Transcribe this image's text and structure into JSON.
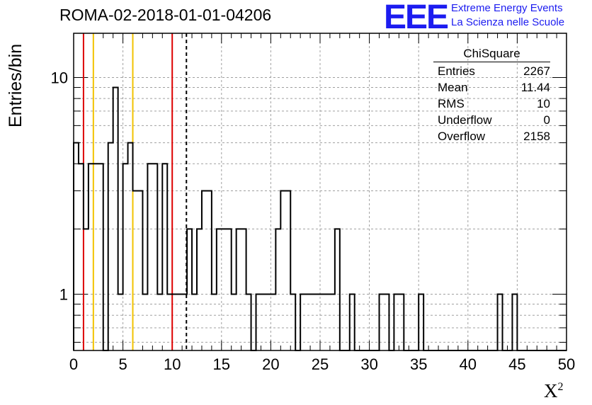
{
  "header": {
    "title": "ROMA-02-2018-01-01-04206",
    "logo_text": "EEE",
    "logo_line1": "Extreme Energy Events",
    "logo_line2": "La Scienza nelle Scuole"
  },
  "stats": {
    "title": "ChiSquare",
    "rows": [
      {
        "label": "Entries",
        "value": "2267"
      },
      {
        "label": "Mean",
        "value": "11.44"
      },
      {
        "label": "RMS",
        "value": "10"
      },
      {
        "label": "Underflow",
        "value": "0"
      },
      {
        "label": "Overflow",
        "value": "2158"
      }
    ]
  },
  "colors": {
    "histogram": "#000000",
    "red_lines": "#dd0000",
    "yellow_lines": "#f2c200",
    "grid": "#a0a0a0",
    "logo": "#1c1cf0"
  },
  "chart_data": {
    "type": "bar",
    "subtype": "step-histogram",
    "title": "ROMA-02-2018-01-01-04206",
    "xlabel": "X",
    "xlabel_superscript": "2",
    "ylabel": "Entries/bin",
    "xlim": [
      0,
      50
    ],
    "ylim": [
      0.55,
      16
    ],
    "yscale": "log",
    "grid": true,
    "bin_width": 0.5,
    "x_ticks": [
      0,
      5,
      10,
      15,
      20,
      25,
      30,
      35,
      40,
      45,
      50
    ],
    "y_ticks": [
      1,
      10
    ],
    "bins": [
      [
        0.0,
        5
      ],
      [
        0.5,
        4
      ],
      [
        1.0,
        2
      ],
      [
        1.5,
        4
      ],
      [
        2.0,
        4
      ],
      [
        2.5,
        4
      ],
      [
        3.5,
        5
      ],
      [
        4.0,
        9
      ],
      [
        4.5,
        1
      ],
      [
        5.0,
        4
      ],
      [
        5.5,
        5
      ],
      [
        6.0,
        3
      ],
      [
        6.5,
        3
      ],
      [
        7.0,
        1
      ],
      [
        7.5,
        4
      ],
      [
        8.0,
        4
      ],
      [
        8.5,
        1
      ],
      [
        9.0,
        4
      ],
      [
        9.5,
        1
      ],
      [
        10.0,
        1
      ],
      [
        10.5,
        1
      ],
      [
        11.0,
        1
      ],
      [
        11.5,
        2
      ],
      [
        12.0,
        1
      ],
      [
        12.5,
        2
      ],
      [
        13.0,
        3
      ],
      [
        13.5,
        3
      ],
      [
        14.0,
        1
      ],
      [
        14.5,
        2
      ],
      [
        15.0,
        2
      ],
      [
        15.5,
        2
      ],
      [
        16.0,
        1
      ],
      [
        16.5,
        2
      ],
      [
        17.0,
        2
      ],
      [
        17.5,
        1
      ],
      [
        18.5,
        1
      ],
      [
        19.0,
        1
      ],
      [
        19.5,
        1
      ],
      [
        20.0,
        1
      ],
      [
        20.5,
        2
      ],
      [
        21.0,
        3
      ],
      [
        21.5,
        3
      ],
      [
        22.0,
        1
      ],
      [
        23.0,
        1
      ],
      [
        23.5,
        1
      ],
      [
        24.0,
        1
      ],
      [
        24.5,
        1
      ],
      [
        25.0,
        1
      ],
      [
        25.5,
        1
      ],
      [
        26.0,
        1
      ],
      [
        26.5,
        2
      ],
      [
        28.0,
        1
      ],
      [
        31.0,
        1
      ],
      [
        31.5,
        1
      ],
      [
        32.5,
        1
      ],
      [
        33.0,
        1
      ],
      [
        35.0,
        1
      ],
      [
        43.0,
        1
      ],
      [
        44.5,
        1
      ]
    ],
    "vertical_lines": [
      {
        "x": 1.0,
        "color": "red",
        "style": "solid"
      },
      {
        "x": 2.0,
        "color": "yellow",
        "style": "solid"
      },
      {
        "x": 6.0,
        "color": "yellow",
        "style": "solid"
      },
      {
        "x": 10.0,
        "color": "red",
        "style": "solid"
      },
      {
        "x": 11.44,
        "color": "black",
        "style": "dashed"
      }
    ]
  }
}
